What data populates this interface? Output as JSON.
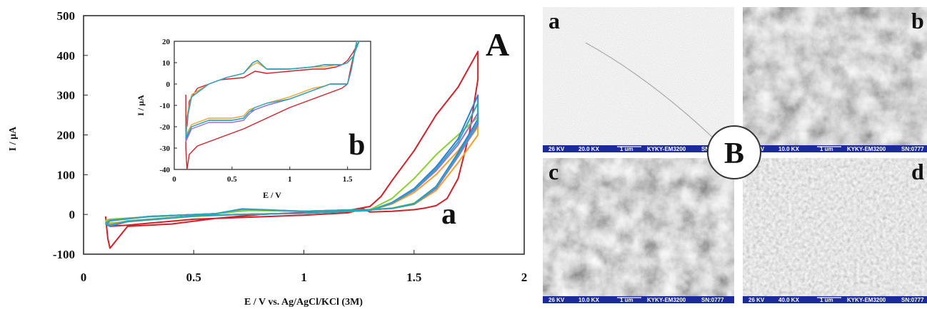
{
  "chart_data": [
    {
      "type": "line",
      "panel_label": "A",
      "curve_label": "a",
      "xlabel": "E / V vs. Ag/AgCl/KCl (3M)",
      "ylabel": "I / μA",
      "xlim": [
        0,
        2
      ],
      "ylim": [
        -100,
        500
      ],
      "xticks": [
        "0",
        "0.5",
        "1",
        "1.5",
        "2"
      ],
      "yticks": [
        "-100",
        "0",
        "100",
        "200",
        "300",
        "400",
        "500"
      ],
      "grid": false,
      "legend": "none",
      "series": [
        {
          "color": "#d0202a",
          "x": [
            0.1,
            0.11,
            0.12,
            0.2,
            0.4,
            0.6,
            0.8,
            1.0,
            1.2,
            1.3,
            1.35,
            1.4,
            1.5,
            1.6,
            1.7,
            1.79,
            1.79,
            1.75,
            1.7,
            1.65,
            1.6,
            1.55,
            1.5,
            1.4,
            1.3,
            1.27,
            1.2,
            1.0,
            0.7,
            0.5,
            0.3,
            0.2,
            0.12,
            0.11,
            0.1
          ],
          "y": [
            -5,
            -60,
            -85,
            -30,
            -24,
            -10,
            0,
            5,
            10,
            20,
            45,
            85,
            160,
            250,
            320,
            410,
            340,
            200,
            90,
            40,
            22,
            16,
            12,
            8,
            6,
            14,
            4,
            -2,
            -8,
            -12,
            -22,
            -27,
            -30,
            -25,
            -20
          ]
        },
        {
          "color": "#8ccf2e",
          "x": [
            0.1,
            0.12,
            0.2,
            0.5,
            0.7,
            0.8,
            1.0,
            1.3,
            1.4,
            1.5,
            1.6,
            1.7,
            1.79,
            1.79,
            1.7,
            1.6,
            1.5,
            1.4,
            1.3,
            1.2,
            1.0,
            0.75,
            0.6,
            0.3,
            0.12,
            0.1
          ],
          "y": [
            -15,
            -22,
            -18,
            -5,
            0,
            1,
            3,
            12,
            40,
            90,
            150,
            200,
            245,
            220,
            150,
            70,
            28,
            16,
            12,
            11,
            8,
            10,
            2,
            -6,
            -12,
            -15
          ]
        },
        {
          "color": "#f0a22e",
          "x": [
            0.1,
            0.12,
            0.2,
            0.5,
            0.7,
            0.8,
            1.0,
            1.3,
            1.4,
            1.5,
            1.6,
            1.7,
            1.79,
            1.79,
            1.7,
            1.6,
            1.5,
            1.4,
            1.3,
            1.2,
            1.0,
            0.72,
            0.6,
            0.3,
            0.12,
            0.1
          ],
          "y": [
            -20,
            -25,
            -16,
            -4,
            0,
            1,
            3,
            10,
            26,
            55,
            100,
            160,
            230,
            200,
            130,
            60,
            25,
            15,
            12,
            11,
            8,
            12,
            2,
            -5,
            -14,
            -20
          ]
        },
        {
          "color": "#9b6fd6",
          "x": [
            0.1,
            0.12,
            0.2,
            0.5,
            0.7,
            0.8,
            1.0,
            1.3,
            1.4,
            1.5,
            1.6,
            1.7,
            1.79,
            1.79,
            1.7,
            1.6,
            1.5,
            1.4,
            1.3,
            1.2,
            1.0,
            0.72,
            0.6,
            0.3,
            0.12,
            0.1
          ],
          "y": [
            -22,
            -27,
            -17,
            -4,
            0,
            1,
            3,
            10,
            28,
            60,
            110,
            175,
            255,
            225,
            145,
            65,
            26,
            15,
            12,
            11,
            8,
            13,
            2,
            -5,
            -15,
            -22
          ]
        },
        {
          "color": "#2f7fd8",
          "x": [
            0.1,
            0.12,
            0.2,
            0.5,
            0.7,
            0.8,
            1.0,
            1.3,
            1.4,
            1.5,
            1.6,
            1.7,
            1.79,
            1.79,
            1.7,
            1.6,
            1.5,
            1.4,
            1.3,
            1.2,
            1.0,
            0.72,
            0.6,
            0.3,
            0.12,
            0.1
          ],
          "y": [
            -25,
            -30,
            -18,
            -4,
            0,
            1,
            3,
            10,
            30,
            65,
            120,
            190,
            300,
            240,
            155,
            70,
            27,
            15,
            12,
            11,
            8,
            14,
            2,
            -5,
            -16,
            -25
          ]
        },
        {
          "color": "#2aa8b8",
          "x": [
            0.1,
            0.12,
            0.2,
            0.5,
            0.7,
            0.8,
            1.0,
            1.3,
            1.4,
            1.5,
            1.6,
            1.7,
            1.79,
            1.79,
            1.7,
            1.6,
            1.5,
            1.4,
            1.3,
            1.2,
            1.0,
            0.72,
            0.6,
            0.3,
            0.12,
            0.1
          ],
          "y": [
            -24,
            -28,
            -17,
            -4,
            0,
            1,
            3,
            10,
            29,
            62,
            115,
            182,
            280,
            232,
            150,
            68,
            26,
            15,
            12,
            11,
            8,
            13,
            2,
            -5,
            -15,
            -24
          ]
        }
      ]
    },
    {
      "type": "line",
      "panel_label": "b",
      "xlabel": "E / V",
      "ylabel": "I / μA",
      "xlim": [
        0,
        1.7
      ],
      "ylim": [
        -40,
        20
      ],
      "xticks": [
        "0",
        "0.5",
        "1",
        "1.5"
      ],
      "yticks": [
        "-40",
        "-30",
        "-20",
        "-10",
        "0",
        "10",
        "20"
      ],
      "grid": false,
      "legend": "none",
      "series": [
        {
          "color": "#d0202a",
          "x": [
            0.1,
            0.1,
            0.11,
            0.13,
            0.2,
            0.4,
            0.6,
            0.8,
            1.0,
            1.2,
            1.4,
            1.45,
            1.5,
            1.53,
            1.58,
            1.6,
            1.55,
            1.5,
            1.45,
            1.4,
            1.3,
            1.2,
            1.0,
            0.8,
            0.7,
            0.6,
            0.4,
            0.2,
            0.13,
            0.11
          ],
          "y": [
            -5,
            -30,
            -40,
            -33,
            -29,
            -25,
            -21,
            -16,
            -11,
            -7,
            -3,
            -2,
            0,
            8,
            20,
            20,
            15,
            11,
            9,
            8,
            7,
            7,
            6,
            5,
            6,
            3,
            2,
            -2,
            -8,
            -20
          ]
        },
        {
          "color": "#2f7fd8",
          "x": [
            0.1,
            0.15,
            0.3,
            0.5,
            0.6,
            0.65,
            0.7,
            0.8,
            1.0,
            1.2,
            1.3,
            1.35,
            1.4,
            1.45,
            1.5,
            1.53,
            1.58,
            1.6,
            1.55,
            1.5,
            1.45,
            1.4,
            1.3,
            1.2,
            1.0,
            0.8,
            0.72,
            0.68,
            0.6,
            0.45,
            0.3,
            0.15,
            0.11,
            0.1
          ],
          "y": [
            -26,
            -20,
            -17,
            -17,
            -16,
            -13,
            -12,
            -10,
            -7,
            -3,
            -1,
            0,
            0,
            0,
            0,
            6,
            20,
            20,
            13,
            10,
            9,
            9,
            9,
            8,
            7,
            7,
            11,
            10,
            5,
            3,
            0,
            -6,
            -16,
            -26
          ]
        },
        {
          "color": "#f0a22e",
          "x": [
            0.1,
            0.15,
            0.3,
            0.5,
            0.6,
            0.65,
            0.7,
            0.8,
            1.0,
            1.2,
            1.3,
            1.35,
            1.4,
            1.45,
            1.5,
            1.53,
            1.58,
            1.6,
            1.55,
            1.5,
            1.45,
            1.4,
            1.3,
            1.2,
            1.0,
            0.8,
            0.72,
            0.68,
            0.6,
            0.45,
            0.3,
            0.15,
            0.11,
            0.1
          ],
          "y": [
            -24,
            -19,
            -16,
            -16,
            -15,
            -12,
            -11,
            -9,
            -6,
            -2,
            -1,
            0,
            0,
            0,
            0,
            6,
            20,
            20,
            13,
            10,
            9,
            9,
            8,
            8,
            7,
            7,
            10,
            9,
            5,
            3,
            0,
            -5,
            -15,
            -24
          ]
        },
        {
          "color": "#9b6fd6",
          "x": [
            0.1,
            0.15,
            0.3,
            0.5,
            0.6,
            0.65,
            0.7,
            0.8,
            1.0,
            1.2,
            1.3,
            1.35,
            1.4,
            1.45,
            1.5,
            1.53,
            1.58,
            1.6,
            1.55,
            1.5,
            1.45,
            1.4,
            1.3,
            1.2,
            1.0,
            0.8,
            0.72,
            0.68,
            0.6,
            0.45,
            0.3,
            0.15,
            0.11,
            0.1
          ],
          "y": [
            -27,
            -21,
            -18,
            -18,
            -17,
            -14,
            -12,
            -10,
            -7,
            -3,
            -1,
            0,
            0,
            0,
            0,
            6,
            20,
            20,
            13,
            10,
            9,
            9,
            9,
            8,
            7,
            7,
            11,
            10,
            5,
            3,
            0,
            -6,
            -17,
            -27
          ]
        },
        {
          "color": "#2aa8b8",
          "x": [
            0.1,
            0.15,
            0.3,
            0.5,
            0.6,
            0.65,
            0.7,
            0.8,
            1.0,
            1.2,
            1.3,
            1.35,
            1.4,
            1.45,
            1.5,
            1.53,
            1.58,
            1.6,
            1.55,
            1.5,
            1.45,
            1.4,
            1.3,
            1.2,
            1.0,
            0.8,
            0.72,
            0.68,
            0.6,
            0.45,
            0.3,
            0.15,
            0.11,
            0.1
          ],
          "y": [
            -25,
            -20,
            -17,
            -17,
            -16,
            -13,
            -11,
            -9,
            -7,
            -3,
            -1,
            0,
            0,
            0,
            0,
            6,
            20,
            20,
            13,
            10,
            9,
            9,
            9,
            8,
            7,
            7,
            11,
            10,
            5,
            3,
            0,
            -6,
            -16,
            -25
          ]
        }
      ]
    }
  ],
  "sem_panel": {
    "label": "B",
    "images": [
      {
        "letter": "a",
        "kv": "26 KV",
        "mag": "20.0 KX",
        "scale": "1 um",
        "model": "KYKY-EM3200",
        "sn": "SN:",
        "texture": "smooth"
      },
      {
        "letter": "b",
        "kv": "26 KV",
        "mag": "10.0 KX",
        "scale": "1 um",
        "model": "KYKY-EM3200",
        "sn": "SN:0777",
        "texture": "rough"
      },
      {
        "letter": "c",
        "kv": "26 KV",
        "mag": "10.0 KX",
        "scale": "1 um",
        "model": "KYKY-EM3200",
        "sn": "SN:0777",
        "texture": "rough"
      },
      {
        "letter": "d",
        "kv": "26 KV",
        "mag": "40.0 KX",
        "scale": "1 um",
        "model": "KYKY-EM3200",
        "sn": "SN:0777",
        "texture": "granular"
      }
    ]
  }
}
